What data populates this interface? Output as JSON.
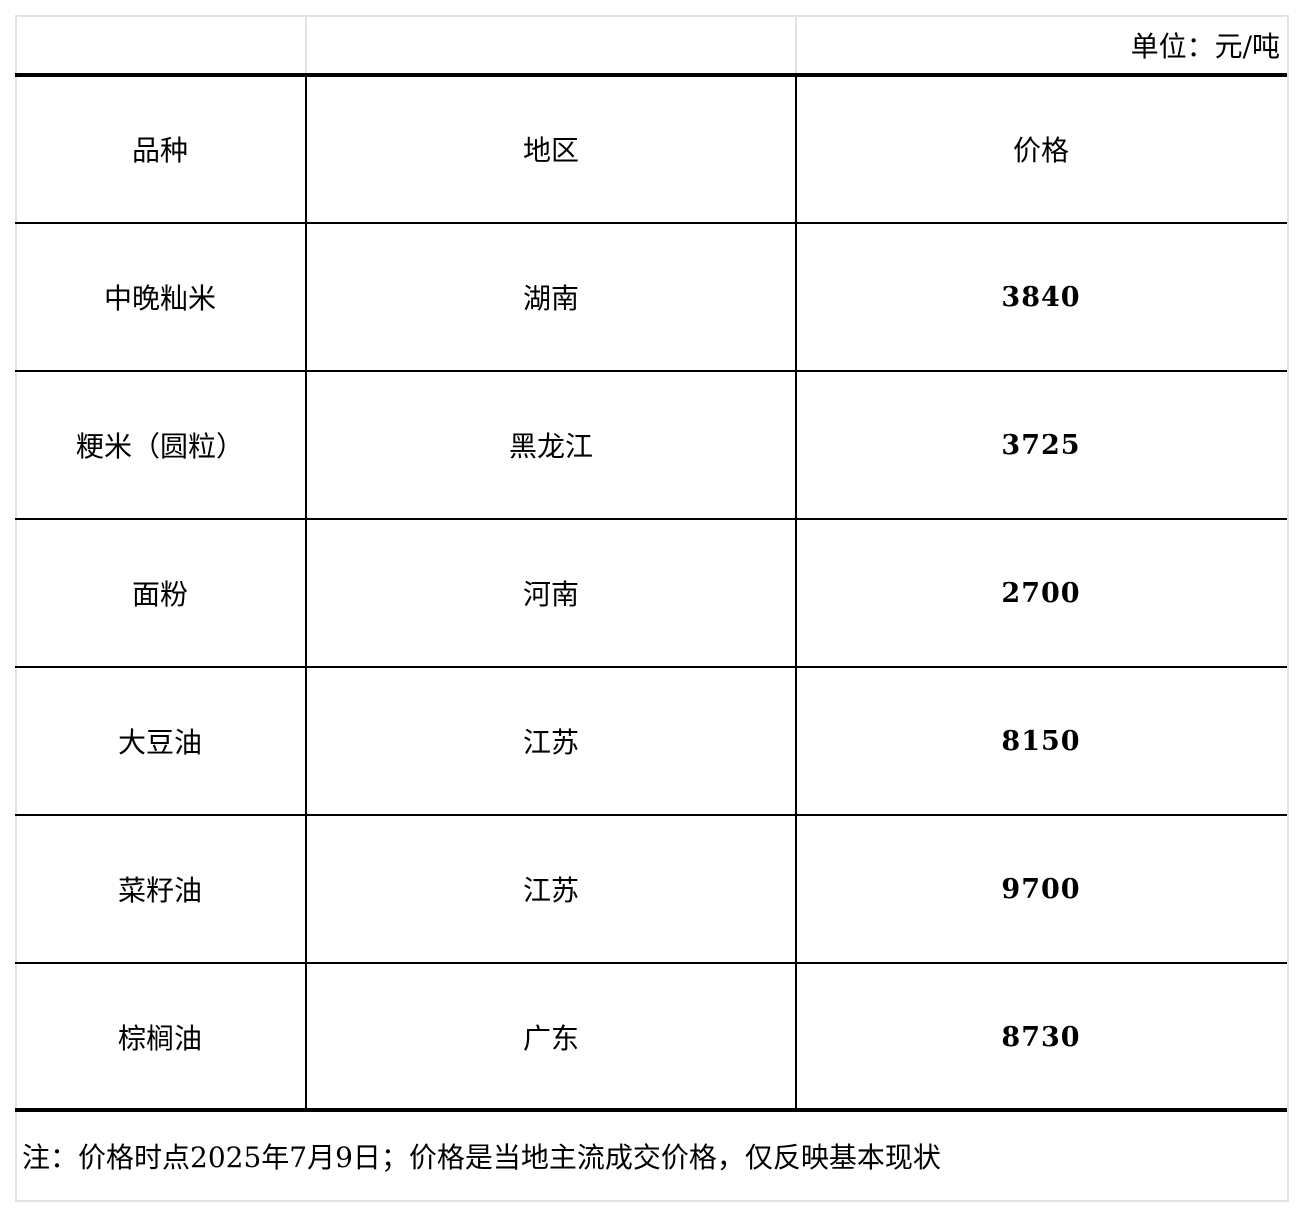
{
  "unit_label": "单位：元/吨",
  "headers": {
    "variety": "品种",
    "region": "地区",
    "price": "价格"
  },
  "rows": [
    {
      "variety": "中晚籼米",
      "region": "湖南",
      "price": "3840"
    },
    {
      "variety": "粳米（圆粒）",
      "region": "黑龙江",
      "price": "3725"
    },
    {
      "variety": "面粉",
      "region": "河南",
      "price": "2700"
    },
    {
      "variety": "大豆油",
      "region": "江苏",
      "price": "8150"
    },
    {
      "variety": "菜籽油",
      "region": "江苏",
      "price": "9700"
    },
    {
      "variety": "棕榈油",
      "region": "广东",
      "price": "8730"
    }
  ],
  "note": "注：价格时点2025年7月9日；价格是当地主流成交价格，仅反映基本现状"
}
